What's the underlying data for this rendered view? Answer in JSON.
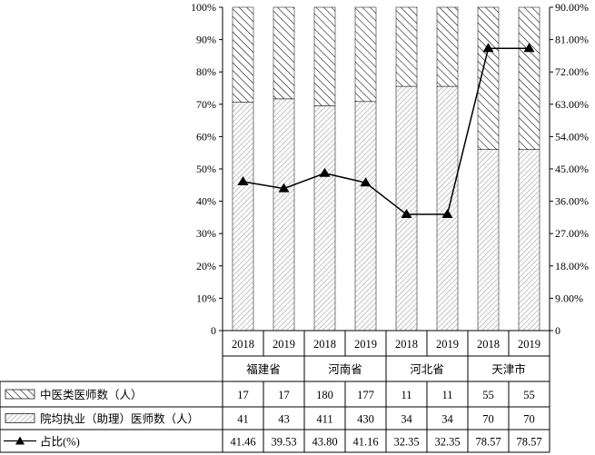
{
  "chart_data": {
    "type": "bar",
    "stacked": "percent",
    "categories": [
      {
        "year": "2018",
        "group": "福建省"
      },
      {
        "year": "2019",
        "group": "福建省"
      },
      {
        "year": "2018",
        "group": "河南省"
      },
      {
        "year": "2019",
        "group": "河南省"
      },
      {
        "year": "2018",
        "group": "河北省"
      },
      {
        "year": "2019",
        "group": "河北省"
      },
      {
        "year": "2018",
        "group": "天津市"
      },
      {
        "year": "2019",
        "group": "天津市"
      }
    ],
    "groups": [
      "福建省",
      "河南省",
      "河北省",
      "天津市"
    ],
    "series": [
      {
        "name": "中医类医师数（人）",
        "type": "bar",
        "pattern": "diagonal-hatch",
        "axis": "left",
        "values": [
          "17",
          "17",
          "180",
          "177",
          "11",
          "11",
          "55",
          "55"
        ]
      },
      {
        "name": "院均执业（助理）医师数（人）",
        "type": "bar",
        "pattern": "dotted-hatch",
        "axis": "left",
        "values": [
          "41",
          "43",
          "411",
          "430",
          "34",
          "34",
          "70",
          "70"
        ]
      },
      {
        "name": "占比(%)",
        "type": "line",
        "marker": "triangle",
        "axis": "right",
        "values": [
          "41.46",
          "39.53",
          "43.80",
          "41.16",
          "32.35",
          "32.35",
          "78.57",
          "78.57"
        ]
      }
    ],
    "y_left": {
      "min": 0,
      "max": 100,
      "ticks": [
        "0",
        "10%",
        "20%",
        "30%",
        "40%",
        "50%",
        "60%",
        "70%",
        "80%",
        "90%",
        "100%"
      ]
    },
    "y_right": {
      "min": 0,
      "max": 90,
      "ticks": [
        "0",
        "9.00%",
        "18.00%",
        "27.00%",
        "36.00%",
        "45.00%",
        "54.00%",
        "63.00%",
        "72.00%",
        "81.00%",
        "90.00%"
      ]
    },
    "data_table": true,
    "grid": false
  }
}
